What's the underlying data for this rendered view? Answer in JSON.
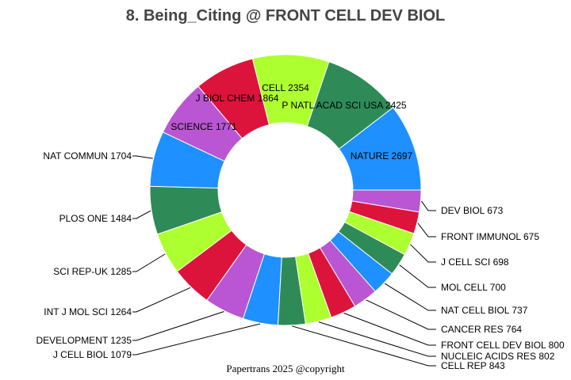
{
  "chart_data": {
    "type": "pie",
    "donut": true,
    "title": "8. Being_Citing @ FRONT CELL DEV BIOL",
    "footer": "Papertrans 2025 @copyright",
    "direction": "counterclockwise",
    "colors": [
      "#1E90FF",
      "#2E8B57",
      "#ADFF2F",
      "#DC143C",
      "#BA55D3"
    ],
    "slices": [
      {
        "label": "NATURE",
        "value": 2697
      },
      {
        "label": "P NATL ACAD SCI USA",
        "value": 2425
      },
      {
        "label": "CELL",
        "value": 2354
      },
      {
        "label": "J BIOL CHEM",
        "value": 1864
      },
      {
        "label": "SCIENCE",
        "value": 1771
      },
      {
        "label": "NAT COMMUN",
        "value": 1704
      },
      {
        "label": "PLOS ONE",
        "value": 1484
      },
      {
        "label": "SCI REP-UK",
        "value": 1285
      },
      {
        "label": "INT J MOL SCI",
        "value": 1264
      },
      {
        "label": "DEVELOPMENT",
        "value": 1235
      },
      {
        "label": "J CELL BIOL",
        "value": 1079
      },
      {
        "label": "CELL REP",
        "value": 843
      },
      {
        "label": "NUCLEIC ACIDS RES",
        "value": 802
      },
      {
        "label": "FRONT CELL DEV BIOL",
        "value": 800
      },
      {
        "label": "CANCER RES",
        "value": 764
      },
      {
        "label": "NAT CELL BIOL",
        "value": 737
      },
      {
        "label": "MOL CELL",
        "value": 700
      },
      {
        "label": "J CELL SCI",
        "value": 698
      },
      {
        "label": "FRONT IMMUNOL",
        "value": 675
      },
      {
        "label": "DEV BIOL",
        "value": 673
      }
    ]
  }
}
